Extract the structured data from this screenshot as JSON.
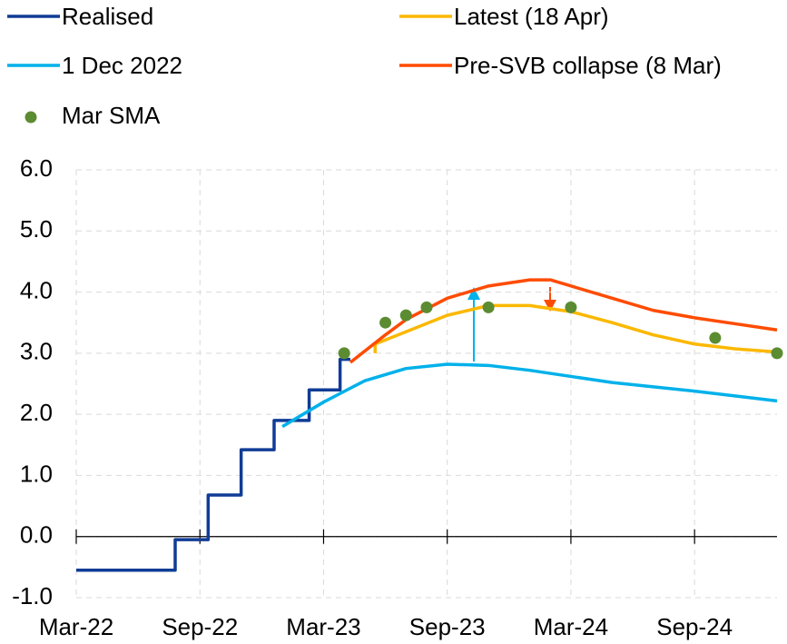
{
  "chart_data": {
    "type": "line",
    "xlim": [
      0,
      34
    ],
    "xticks": [
      {
        "value": 0,
        "label": "Mar-22"
      },
      {
        "value": 6,
        "label": "Sep-22"
      },
      {
        "value": 12,
        "label": "Mar-23"
      },
      {
        "value": 18,
        "label": "Sep-23"
      },
      {
        "value": 24,
        "label": "Mar-24"
      },
      {
        "value": 30,
        "label": "Sep-24"
      }
    ],
    "ylim": [
      -1,
      6
    ],
    "yticks": [
      {
        "value": -1,
        "label": "-1.0"
      },
      {
        "value": 0,
        "label": "0.0"
      },
      {
        "value": 1,
        "label": "1.0"
      },
      {
        "value": 2,
        "label": "2.0"
      },
      {
        "value": 3,
        "label": "3.0"
      },
      {
        "value": 4,
        "label": "4.0"
      },
      {
        "value": 5,
        "label": "5.0"
      },
      {
        "value": 6,
        "label": "6.0"
      }
    ],
    "grid": true,
    "series": [
      {
        "name": "Realised",
        "color": "#103c96",
        "x": [
          0,
          4.8,
          4.8,
          6.4,
          6.4,
          8,
          8,
          9.6,
          9.6,
          11.3,
          11.3,
          12.8,
          12.8,
          13.3
        ],
        "values": [
          -0.55,
          -0.55,
          -0.05,
          -0.05,
          0.68,
          0.68,
          1.42,
          1.42,
          1.9,
          1.9,
          2.4,
          2.4,
          2.9,
          2.9
        ]
      },
      {
        "name": "Latest (18 Apr)",
        "color": "#fbb800",
        "x": [
          14.5,
          14.5,
          16,
          18,
          20,
          22,
          24,
          26,
          28,
          30,
          32,
          34
        ],
        "values": [
          3.0,
          3.15,
          3.35,
          3.62,
          3.78,
          3.78,
          3.68,
          3.5,
          3.3,
          3.15,
          3.07,
          3.02
        ]
      },
      {
        "name": "1 Dec 2022",
        "color": "#00b1ea",
        "x": [
          10,
          12,
          14,
          16,
          18,
          20,
          22,
          24,
          26,
          28,
          30,
          32,
          34
        ],
        "values": [
          1.8,
          2.2,
          2.55,
          2.75,
          2.82,
          2.8,
          2.72,
          2.62,
          2.52,
          2.45,
          2.38,
          2.3,
          2.22
        ]
      },
      {
        "name": "Pre-SVB collapse (8 Mar)",
        "color": "#ff4b00",
        "x": [
          13.3,
          15,
          16,
          18,
          20,
          22,
          23,
          24,
          26,
          28,
          30,
          32,
          34
        ],
        "values": [
          2.85,
          3.3,
          3.55,
          3.9,
          4.1,
          4.2,
          4.2,
          4.1,
          3.9,
          3.7,
          3.58,
          3.48,
          3.38
        ]
      },
      {
        "name": "Mar SMA",
        "color": "#5c8c32",
        "type": "scatter",
        "x": [
          13,
          15,
          16,
          17,
          20,
          24,
          31,
          34
        ],
        "values": [
          3.0,
          3.5,
          3.62,
          3.75,
          3.75,
          3.75,
          3.25,
          3.0
        ]
      }
    ]
  }
}
